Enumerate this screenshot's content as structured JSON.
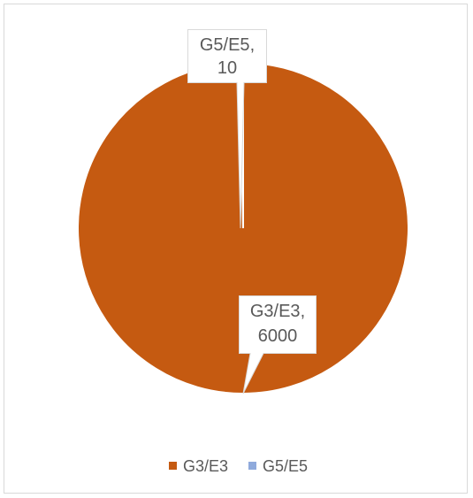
{
  "chart_data": {
    "type": "pie",
    "categories": [
      "G3/E3",
      "G5/E5"
    ],
    "values": [
      6000,
      10
    ],
    "colors": [
      "#C55A11",
      "#8FAADC"
    ],
    "data_labels": [
      {
        "category": "G3/E3",
        "value": "6000"
      },
      {
        "category": "G5/E5",
        "value": "10"
      }
    ],
    "legend": {
      "placement": "bottom",
      "entries": [
        "G3/E3",
        "G5/E5"
      ]
    }
  }
}
